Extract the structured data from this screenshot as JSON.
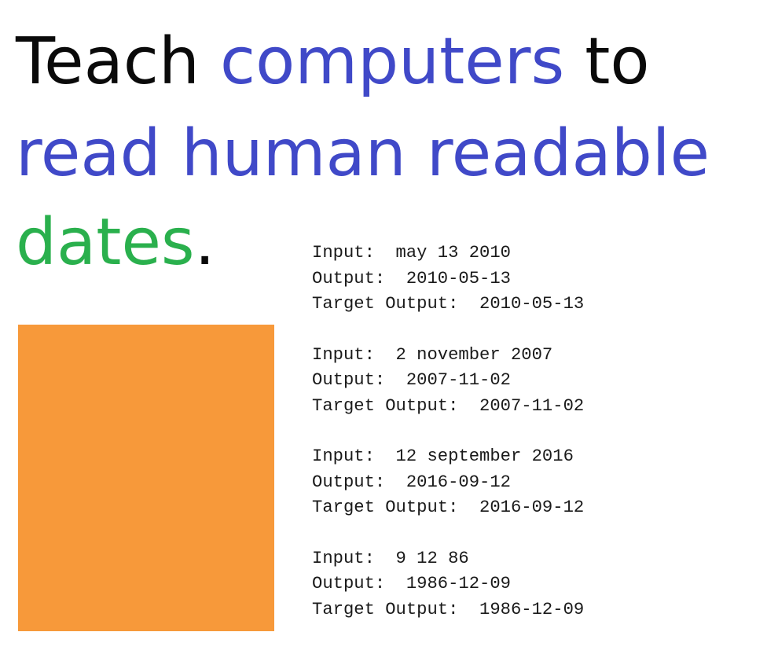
{
  "headline": {
    "line1": {
      "word1": "Teach",
      "word2": "computers",
      "word3": "to"
    },
    "line2": {
      "text": "read human readable"
    },
    "line3": {
      "word1": "dates",
      "period": "."
    }
  },
  "colors": {
    "dark": "#0a0a0a",
    "blue": "#4049c8",
    "green": "#2ab04d",
    "orange": "#f7993a"
  },
  "labels": {
    "input": "Input:  ",
    "output": "Output:  ",
    "target": "Target Output:  "
  },
  "examples": [
    {
      "input": "may 13 2010",
      "output": "2010-05-13",
      "target": "2010-05-13"
    },
    {
      "input": "2 november 2007",
      "output": "2007-11-02",
      "target": "2007-11-02"
    },
    {
      "input": "12 september 2016",
      "output": "2016-09-12",
      "target": "2016-09-12"
    },
    {
      "input": "9 12 86",
      "output": "1986-12-09",
      "target": "1986-12-09"
    }
  ]
}
